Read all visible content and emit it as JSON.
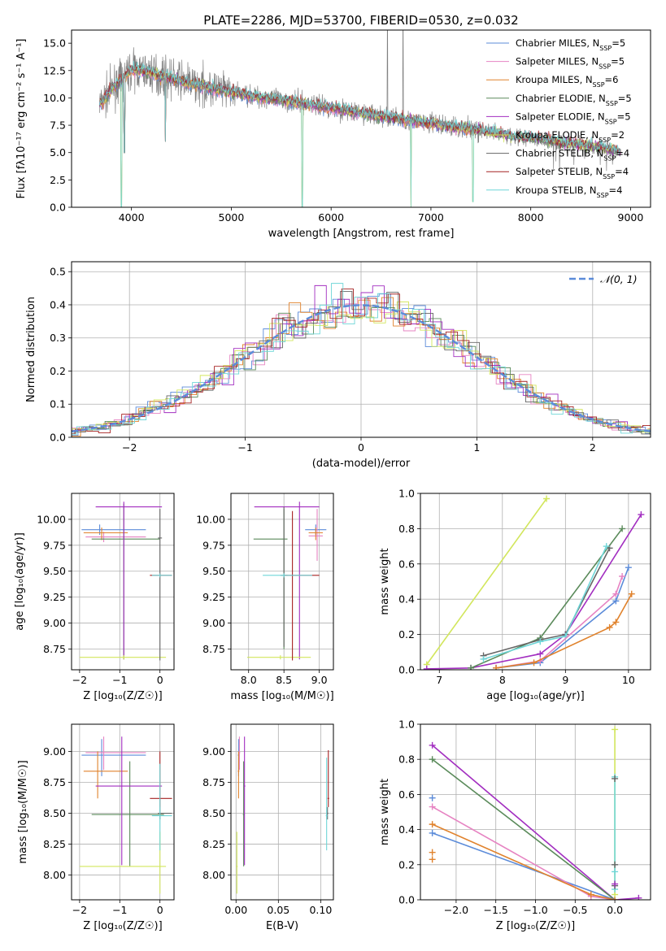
{
  "title": "PLATE=2286, MJD=53700, FIBERID=0530, z=0.032",
  "colors": {
    "chabrier_miles": "#5b8bd9",
    "salpeter_miles": "#e683c2",
    "kroupa_miles": "#e0822c",
    "chabrier_elodie": "#5a8a5a",
    "salpeter_elodie": "#a22ec0",
    "kroupa_elodie": "#d2e65c",
    "chabrier_stelib": "#666666",
    "salpeter_stelib": "#a62222",
    "kroupa_stelib": "#6fd6d8",
    "data": "#808080",
    "gaussian": "#5b8bd9",
    "grid": "#b0b0b0"
  },
  "chart_data": [
    {
      "id": "spectrum",
      "type": "line",
      "xlabel": "wavelength [Angstrom, rest frame]",
      "ylabel": "Flux [fλ10⁻¹⁷ erg cm⁻² s⁻¹ A⁻¹]",
      "xlim": [
        3400,
        9200
      ],
      "ylim": [
        0,
        16.2
      ],
      "xticks": [
        4000,
        5000,
        6000,
        7000,
        8000,
        9000
      ],
      "yticks": [
        0.0,
        2.5,
        5.0,
        7.5,
        10.0,
        12.5,
        15.0
      ],
      "grid": false,
      "legend_placement": "top-right",
      "legend": [
        "Chabrier MILES, N_SSP=5",
        "Salpeter MILES, N_SSP=5",
        "Kroupa MILES, N_SSP=6",
        "Chabrier ELODIE, N_SSP=5",
        "Salpeter ELODIE, N_SSP=5",
        "Kroupa ELODIE, N_SSP=2",
        "Chabrier STELIB, N_SSP=4",
        "Salpeter STELIB, N_SSP=4",
        "Kroupa STELIB, N_SSP=4"
      ],
      "model_continuum": {
        "x": [
          3700,
          3800,
          3900,
          4000,
          4100,
          4200,
          4300,
          4400,
          4600,
          4800,
          5000,
          5200,
          5500,
          5800,
          6000,
          6300,
          6600,
          6900,
          7200,
          7500,
          7800,
          8100,
          8400,
          8700,
          8900
        ],
        "y": [
          9.5,
          10.8,
          11.6,
          12.6,
          12.5,
          12.3,
          12.0,
          11.8,
          11.3,
          10.9,
          10.5,
          10.2,
          9.8,
          9.4,
          9.1,
          8.6,
          8.2,
          7.8,
          7.4,
          7.0,
          6.5,
          6.2,
          5.8,
          5.5,
          5.0
        ]
      },
      "model_dips": [
        {
          "x": 3900,
          "y": 0.0
        },
        {
          "x": 3930,
          "y": 5.0
        },
        {
          "x": 4340,
          "y": 6.0
        },
        {
          "x": 5710,
          "y": 0.0
        },
        {
          "x": 6800,
          "y": 0.0
        },
        {
          "x": 7420,
          "y": 0.5
        }
      ],
      "data_line": {
        "noise_amplitude": 1.6,
        "emission": [
          {
            "x": 6565,
            "y": 16.2
          },
          {
            "x": 6720,
            "y": 16.2
          }
        ]
      }
    },
    {
      "id": "residuals",
      "type": "histogram",
      "xlabel": "(data-model)/error",
      "ylabel": "Normed distribution",
      "xlim": [
        -2.5,
        2.5
      ],
      "ylim": [
        0,
        0.53
      ],
      "xticks": [
        -2,
        -1,
        0,
        1,
        2
      ],
      "yticks": [
        0.0,
        0.1,
        0.2,
        0.3,
        0.4,
        0.5
      ],
      "grid": true,
      "legend_placement": "top-right",
      "legend": [
        "𝒩(0, 1)"
      ],
      "bin_width": 0.1,
      "gaussian": {
        "mu": 0,
        "sigma": 1
      }
    },
    {
      "id": "age_vs_Z",
      "type": "errorbar",
      "xlabel": "Z [log₁₀(Z/Z☉)]",
      "ylabel": "age  [log₁₀(age/yr)]",
      "xlim": [
        -2.2,
        0.35
      ],
      "ylim": [
        8.55,
        10.25
      ],
      "xticks": [
        -2,
        -1,
        0
      ],
      "yticks": [
        8.75,
        9.0,
        9.25,
        9.5,
        9.75,
        10.0
      ],
      "grid": true,
      "points": [
        {
          "m": "chabrier_miles",
          "x": -1.5,
          "xe": [
            -1.95,
            -0.35
          ],
          "y": 9.9,
          "ye": [
            9.85,
            9.95
          ]
        },
        {
          "m": "salpeter_miles",
          "x": -1.4,
          "xe": [
            -1.85,
            -0.35
          ],
          "y": 9.83,
          "ye": [
            9.78,
            9.88
          ]
        },
        {
          "m": "kroupa_miles",
          "x": -1.45,
          "xe": [
            -1.9,
            -0.8
          ],
          "y": 9.87,
          "ye": [
            9.8,
            9.92
          ]
        },
        {
          "m": "chabrier_elodie",
          "x": -0.9,
          "xe": [
            -1.7,
            0.0
          ],
          "y": 9.81,
          "ye": [
            8.65,
            10.15
          ]
        },
        {
          "m": "salpeter_elodie",
          "x": -0.9,
          "xe": [
            -1.6,
            0.05
          ],
          "y": 10.12,
          "ye": [
            8.65,
            10.17
          ]
        },
        {
          "m": "kroupa_elodie",
          "x": -0.9,
          "xe": [
            -2.0,
            0.15
          ],
          "y": 8.67,
          "ye": [
            8.65,
            8.69
          ]
        },
        {
          "m": "chabrier_stelib",
          "x": 0.0,
          "xe": [
            -0.05,
            0.05
          ],
          "y": 9.82,
          "ye": [
            8.64,
            10.1
          ]
        },
        {
          "m": "salpeter_stelib",
          "x": 0.0,
          "xe": [
            -0.25,
            0.3
          ],
          "y": 9.46,
          "ye": [
            9.44,
            9.48
          ]
        },
        {
          "m": "kroupa_stelib",
          "x": 0.0,
          "xe": [
            -0.2,
            0.3
          ],
          "y": 9.46,
          "ye": [
            9.44,
            9.48
          ]
        }
      ]
    },
    {
      "id": "age_vs_mass",
      "type": "errorbar",
      "xlabel": "mass [log₁₀(M/M☉)]",
      "ylabel": "",
      "xlim": [
        7.75,
        9.2
      ],
      "ylim": [
        8.55,
        10.25
      ],
      "xticks": [
        8.0,
        8.5,
        9.0
      ],
      "yticks": [
        8.75,
        9.0,
        9.25,
        9.5,
        9.75,
        10.0
      ],
      "grid": true,
      "points": [
        {
          "m": "chabrier_miles",
          "x": 8.95,
          "xe": [
            8.8,
            9.1
          ],
          "y": 9.9,
          "ye": [
            9.85,
            9.95
          ]
        },
        {
          "m": "salpeter_miles",
          "x": 8.97,
          "xe": [
            8.85,
            9.05
          ],
          "y": 9.84,
          "ye": [
            9.6,
            10.1
          ]
        },
        {
          "m": "kroupa_miles",
          "x": 8.95,
          "xe": [
            8.85,
            9.05
          ],
          "y": 9.87,
          "ye": [
            9.8,
            9.92
          ]
        },
        {
          "m": "chabrier_elodie",
          "x": 8.5,
          "xe": [
            8.07,
            8.55
          ],
          "y": 9.81,
          "ye": [
            8.75,
            10.1
          ]
        },
        {
          "m": "salpeter_elodie",
          "x": 8.72,
          "xe": [
            8.08,
            9.0
          ],
          "y": 10.12,
          "ye": [
            8.65,
            10.17
          ]
        },
        {
          "m": "kroupa_elodie",
          "x": 8.45,
          "xe": [
            7.98,
            8.88
          ],
          "y": 8.67,
          "ye": [
            8.65,
            8.69
          ]
        },
        {
          "m": "chabrier_stelib",
          "x": 8.5,
          "xe": [
            8.45,
            8.55
          ],
          "y": 9.46,
          "ye": [
            8.77,
            10.12
          ]
        },
        {
          "m": "salpeter_stelib",
          "x": 8.62,
          "xe": [
            8.5,
            9.0
          ],
          "y": 9.46,
          "ye": [
            8.64,
            10.08
          ]
        },
        {
          "m": "kroupa_stelib",
          "x": 8.5,
          "xe": [
            8.2,
            8.9
          ],
          "y": 9.46,
          "ye": [
            9.44,
            9.48
          ]
        }
      ]
    },
    {
      "id": "massweight_vs_age",
      "type": "line",
      "xlabel": "age  [log₁₀(age/yr)]",
      "ylabel": "mass weight",
      "xlim": [
        6.7,
        10.35
      ],
      "ylim": [
        0,
        1.0
      ],
      "xticks": [
        7,
        8,
        9,
        10
      ],
      "yticks": [
        0.0,
        0.2,
        0.4,
        0.6,
        0.8,
        1.0
      ],
      "grid": true,
      "series": [
        {
          "m": "kroupa_elodie",
          "x": [
            6.8,
            8.7
          ],
          "y": [
            0.03,
            0.97
          ]
        },
        {
          "m": "salpeter_elodie",
          "x": [
            6.8,
            7.5,
            8.6,
            9.0,
            10.2
          ],
          "y": [
            0.005,
            0.01,
            0.09,
            0.2,
            0.88
          ]
        },
        {
          "m": "chabrier_elodie",
          "x": [
            7.5,
            8.6,
            9.9
          ],
          "y": [
            0.01,
            0.18,
            0.8
          ]
        },
        {
          "m": "chabrier_stelib",
          "x": [
            7.7,
            8.6,
            9.0,
            9.7
          ],
          "y": [
            0.08,
            0.17,
            0.2,
            0.69
          ]
        },
        {
          "m": "kroupa_stelib",
          "x": [
            7.7,
            8.6,
            9.0,
            9.65
          ],
          "y": [
            0.06,
            0.16,
            0.19,
            0.7
          ]
        },
        {
          "m": "chabrier_miles",
          "x": [
            7.9,
            8.6,
            9.8,
            10.0
          ],
          "y": [
            0.01,
            0.04,
            0.39,
            0.58
          ]
        },
        {
          "m": "salpeter_miles",
          "x": [
            7.9,
            8.6,
            9.8,
            9.9
          ],
          "y": [
            0.01,
            0.05,
            0.43,
            0.53
          ]
        },
        {
          "m": "kroupa_miles",
          "x": [
            7.9,
            8.5,
            9.7,
            9.8,
            10.05
          ],
          "y": [
            0.01,
            0.04,
            0.24,
            0.27,
            0.43
          ]
        }
      ]
    },
    {
      "id": "mass_vs_Z",
      "type": "errorbar",
      "xlabel": "Z [log₁₀(Z/Z☉)]",
      "ylabel": "mass [log₁₀(M/M☉)]",
      "xlim": [
        -2.2,
        0.35
      ],
      "ylim": [
        7.8,
        9.22
      ],
      "xticks": [
        -2,
        -1,
        0
      ],
      "yticks": [
        8.0,
        8.25,
        8.5,
        8.75,
        9.0
      ],
      "grid": true,
      "points": [
        {
          "m": "chabrier_miles",
          "x": -1.45,
          "xe": [
            -1.95,
            -0.35
          ],
          "y": 8.97,
          "ye": [
            8.8,
            9.1
          ]
        },
        {
          "m": "salpeter_miles",
          "x": -1.4,
          "xe": [
            -1.85,
            -0.35
          ],
          "y": 8.99,
          "ye": [
            8.85,
            9.12
          ]
        },
        {
          "m": "kroupa_miles",
          "x": -1.55,
          "xe": [
            -1.9,
            -0.8
          ],
          "y": 8.84,
          "ye": [
            8.62,
            9.0
          ]
        },
        {
          "m": "chabrier_elodie",
          "x": -0.75,
          "xe": [
            -1.7,
            0.1
          ],
          "y": 8.49,
          "ye": [
            8.07,
            8.92
          ]
        },
        {
          "m": "salpeter_elodie",
          "x": -0.95,
          "xe": [
            -1.6,
            0.05
          ],
          "y": 8.72,
          "ye": [
            8.08,
            9.12
          ]
        },
        {
          "m": "kroupa_elodie",
          "x": 0.0,
          "xe": [
            -2.0,
            0.15
          ],
          "y": 8.07,
          "ye": [
            7.85,
            8.35
          ]
        },
        {
          "m": "chabrier_stelib",
          "x": 0.0,
          "xe": [
            -0.05,
            0.3
          ],
          "y": 8.5,
          "ye": [
            8.45,
            8.55
          ]
        },
        {
          "m": "salpeter_stelib",
          "x": 0.0,
          "xe": [
            -0.25,
            0.3
          ],
          "y": 8.62,
          "ye": [
            8.55,
            9.0
          ]
        },
        {
          "m": "kroupa_stelib",
          "x": 0.0,
          "xe": [
            -0.2,
            0.3
          ],
          "y": 8.48,
          "ye": [
            8.2,
            8.9
          ]
        }
      ]
    },
    {
      "id": "mass_vs_ebv",
      "type": "errorbar",
      "xlabel": "E(B-V)",
      "ylabel": "",
      "xlim": [
        -0.006,
        0.115
      ],
      "ylim": [
        7.8,
        9.22
      ],
      "xticks": [
        0.0,
        0.05,
        0.1
      ],
      "yticks": [
        8.0,
        8.25,
        8.5,
        8.75,
        9.0
      ],
      "grid": true,
      "points": [
        {
          "m": "chabrier_miles",
          "x": 0.003,
          "xe": [
            0.002,
            0.004
          ],
          "y": 8.97,
          "ye": [
            8.8,
            9.1
          ]
        },
        {
          "m": "salpeter_miles",
          "x": 0.004,
          "xe": [
            0.003,
            0.005
          ],
          "y": 8.99,
          "ye": [
            8.85,
            9.12
          ]
        },
        {
          "m": "kroupa_miles",
          "x": 0.003,
          "xe": [
            0.002,
            0.004
          ],
          "y": 8.84,
          "ye": [
            8.62,
            9.0
          ]
        },
        {
          "m": "chabrier_elodie",
          "x": 0.009,
          "xe": [
            0.008,
            0.01
          ],
          "y": 8.49,
          "ye": [
            8.07,
            8.92
          ]
        },
        {
          "m": "salpeter_elodie",
          "x": 0.01,
          "xe": [
            0.009,
            0.011
          ],
          "y": 8.72,
          "ye": [
            8.08,
            9.12
          ]
        },
        {
          "m": "kroupa_elodie",
          "x": 0.001,
          "xe": [
            0.0,
            0.002
          ],
          "y": 8.07,
          "ye": [
            7.85,
            8.35
          ]
        },
        {
          "m": "chabrier_stelib",
          "x": 0.108,
          "xe": [
            0.107,
            0.109
          ],
          "y": 8.5,
          "ye": [
            8.45,
            8.55
          ]
        },
        {
          "m": "salpeter_stelib",
          "x": 0.109,
          "xe": [
            0.108,
            0.11
          ],
          "y": 8.62,
          "ye": [
            8.55,
            9.01
          ]
        },
        {
          "m": "kroupa_stelib",
          "x": 0.107,
          "xe": [
            0.106,
            0.108
          ],
          "y": 8.48,
          "ye": [
            8.2,
            8.95
          ]
        }
      ]
    },
    {
      "id": "massweight_vs_Z",
      "type": "line",
      "xlabel": "Z [log₁₀(Z/Z☉)]",
      "ylabel": "mass weight",
      "xlim": [
        -2.45,
        0.45
      ],
      "ylim": [
        0,
        1.0
      ],
      "xticks": [
        -2.0,
        -1.5,
        -1.0,
        -0.5,
        0.0
      ],
      "yticks": [
        0.0,
        0.2,
        0.4,
        0.6,
        0.8,
        1.0
      ],
      "grid": true,
      "series": [
        {
          "m": "salpeter_elodie",
          "x": [
            -2.3,
            0.0,
            0.3
          ],
          "y": [
            0.88,
            0.0,
            0.01
          ]
        },
        {
          "m": "chabrier_elodie",
          "x": [
            -2.3,
            0.0
          ],
          "y": [
            0.8,
            0.0
          ]
        },
        {
          "m": "chabrier_miles",
          "x": [
            -2.3,
            0.0
          ],
          "y": [
            0.38,
            0.0
          ]
        },
        {
          "m": "salpeter_miles",
          "x": [
            -2.3,
            -0.3,
            0.0
          ],
          "y": [
            0.53,
            0.02,
            0.0
          ]
        },
        {
          "m": "kroupa_miles",
          "x": [
            -2.3,
            -0.3,
            0.0
          ],
          "y": [
            0.43,
            0.03,
            0.0
          ]
        },
        {
          "m": "kroupa_elodie",
          "x": [
            0.0,
            0.0
          ],
          "y": [
            0.03,
            0.97
          ]
        },
        {
          "m": "kroupa_stelib",
          "x": [
            0.0,
            0.0
          ],
          "y": [
            0.06,
            0.7
          ]
        }
      ],
      "markers": [
        {
          "m": "chabrier_miles",
          "x": -2.3,
          "y": 0.58
        },
        {
          "m": "kroupa_miles",
          "x": -2.3,
          "y": 0.27
        },
        {
          "m": "kroupa_miles",
          "x": -2.3,
          "y": 0.23
        },
        {
          "m": "chabrier_stelib",
          "x": 0.0,
          "y": 0.69
        },
        {
          "m": "chabrier_stelib",
          "x": 0.0,
          "y": 0.2
        },
        {
          "m": "chabrier_stelib",
          "x": 0.0,
          "y": 0.08
        },
        {
          "m": "kroupa_stelib",
          "x": 0.0,
          "y": 0.16
        },
        {
          "m": "salpeter_elodie",
          "x": 0.0,
          "y": 0.09
        }
      ]
    }
  ]
}
